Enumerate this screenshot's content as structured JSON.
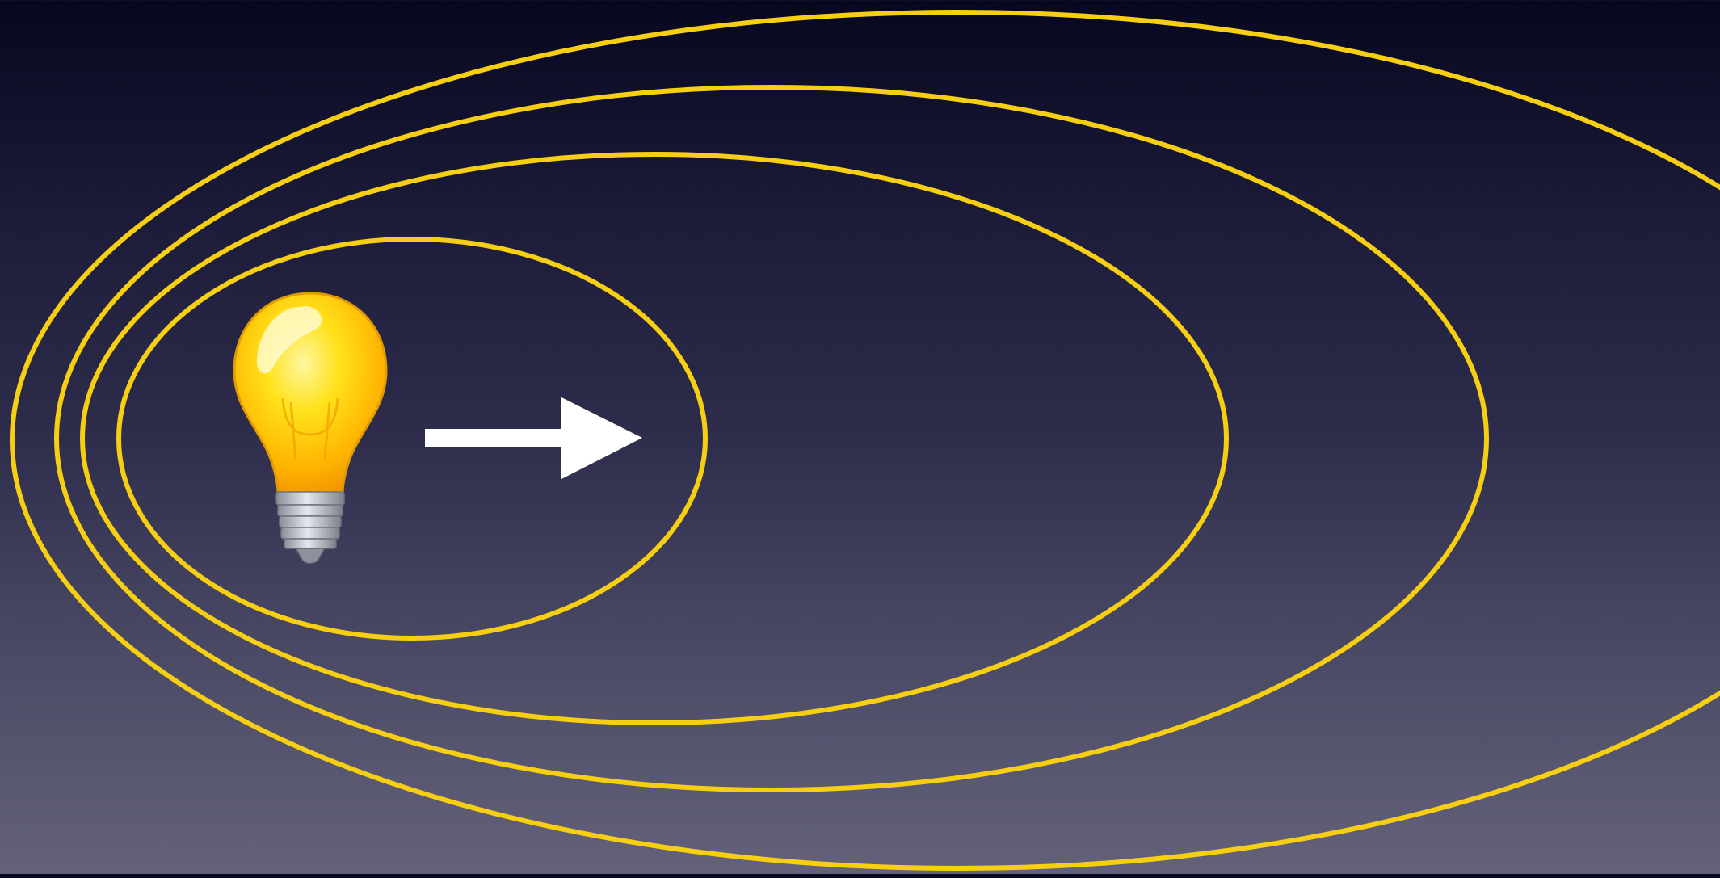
{
  "diagram": {
    "rings": [
      {
        "name": "ring-1"
      },
      {
        "name": "ring-2"
      },
      {
        "name": "ring-3"
      },
      {
        "name": "ring-4"
      }
    ],
    "colors": {
      "ring": "#f7cf12",
      "arrow": "#ffffff",
      "bulb_glass": "#ffd200",
      "bulb_base": "#b9bcc4"
    },
    "icons": {
      "bulb": "lightbulb-icon",
      "arrow": "arrow-right-icon"
    }
  }
}
